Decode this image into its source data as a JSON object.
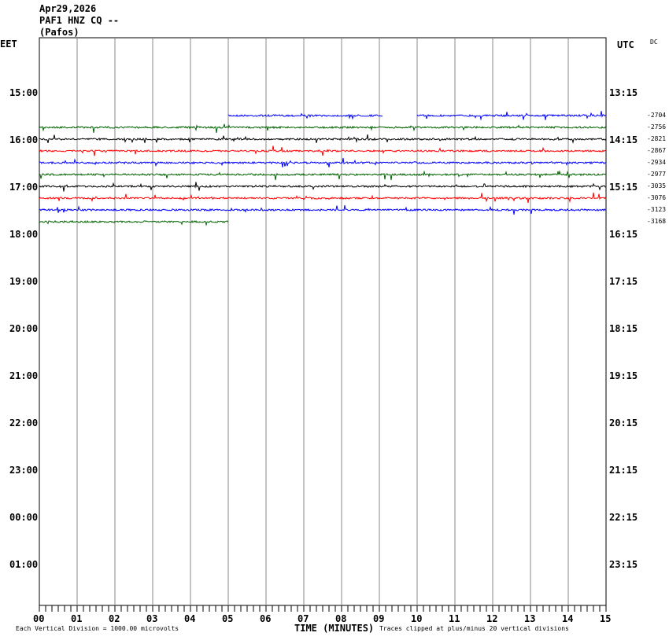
{
  "header": {
    "date": "Apr29,2026",
    "station": "PAF1 HNZ CQ --",
    "location": "(Pafos)"
  },
  "left_axis_label": "EET",
  "right_axis_label": "UTC",
  "dc_label": "DC",
  "footer": {
    "scale_note": "Each Vertical Division = 1000.00 microvolts",
    "xlabel": "TIME (MINUTES)",
    "clip_note": "Traces clipped at plus/minus 20 vertical divisions"
  },
  "chart_data": {
    "type": "line",
    "subtype": "helicorder",
    "xlabel": "TIME (MINUTES)",
    "xlim": [
      0,
      15
    ],
    "x_ticks": [
      "00",
      "01",
      "02",
      "03",
      "04",
      "05",
      "06",
      "07",
      "08",
      "09",
      "10",
      "11",
      "12",
      "13",
      "14",
      "15"
    ],
    "grid": true,
    "left_time_labels": [
      "15:00",
      "16:00",
      "17:00",
      "18:00",
      "19:00",
      "20:00",
      "21:00",
      "22:00",
      "23:00",
      "00:00",
      "01:00"
    ],
    "right_time_labels": [
      "13:15",
      "14:15",
      "15:15",
      "16:15",
      "17:15",
      "18:15",
      "19:15",
      "20:15",
      "21:15",
      "22:15",
      "23:15"
    ],
    "colors": {
      "blue": "#0000ff",
      "green": "#006400",
      "black": "#000000",
      "red": "#ff0000"
    },
    "traces": [
      {
        "color": "blue",
        "dc_offset": "-2704",
        "segments": [
          [
            5,
            9.1
          ],
          [
            10,
            15
          ]
        ]
      },
      {
        "color": "green",
        "dc_offset": "-2756",
        "segments": [
          [
            0,
            15
          ]
        ]
      },
      {
        "color": "black",
        "dc_offset": "-2821",
        "segments": [
          [
            0,
            15
          ]
        ]
      },
      {
        "color": "red",
        "dc_offset": "-2867",
        "segments": [
          [
            0,
            15
          ]
        ]
      },
      {
        "color": "blue",
        "dc_offset": "-2934",
        "segments": [
          [
            0,
            15
          ]
        ]
      },
      {
        "color": "green",
        "dc_offset": "-2977",
        "segments": [
          [
            0,
            15
          ]
        ]
      },
      {
        "color": "black",
        "dc_offset": "-3035",
        "segments": [
          [
            0,
            15
          ]
        ]
      },
      {
        "color": "red",
        "dc_offset": "-3076",
        "segments": [
          [
            0,
            15
          ]
        ]
      },
      {
        "color": "blue",
        "dc_offset": "-3123",
        "segments": [
          [
            0,
            15
          ]
        ]
      },
      {
        "color": "green",
        "dc_offset": "-3168",
        "segments": [
          [
            0,
            5
          ]
        ]
      }
    ]
  }
}
